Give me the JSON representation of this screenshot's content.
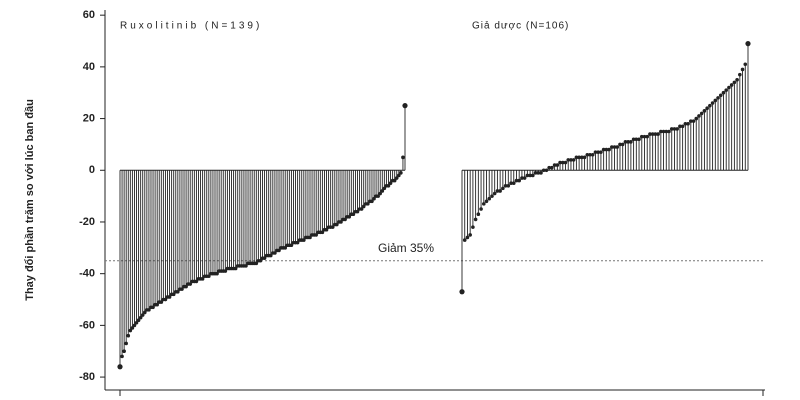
{
  "chart_data": {
    "type": "waterfall",
    "y_label": "Thay đổi phần trăm so với lúc ban đầu",
    "ylim": [
      -85,
      62
    ],
    "yticks": [
      60,
      40,
      20,
      0,
      -20,
      -40,
      -60,
      -80
    ],
    "reference_line": {
      "value": -35,
      "label": "Giảm 35%"
    },
    "series": [
      {
        "name": "Ruxolitinib (N=139)",
        "color": "#222222",
        "values": [
          -76,
          -72,
          -70,
          -67,
          -64,
          -62,
          -61,
          -60,
          -59,
          -58,
          -57,
          -56,
          -55,
          -54,
          -54,
          -53,
          -53,
          -52,
          -52,
          -51,
          -51,
          -50,
          -50,
          -49,
          -49,
          -48,
          -48,
          -47,
          -47,
          -46,
          -46,
          -45,
          -45,
          -44,
          -44,
          -43,
          -43,
          -43,
          -42,
          -42,
          -42,
          -41,
          -41,
          -41,
          -40,
          -40,
          -40,
          -40,
          -39,
          -39,
          -39,
          -39,
          -38,
          -38,
          -38,
          -38,
          -38,
          -37,
          -37,
          -37,
          -37,
          -37,
          -36,
          -36,
          -36,
          -36,
          -36,
          -35,
          -35,
          -34,
          -34,
          -33,
          -33,
          -33,
          -32,
          -32,
          -31,
          -31,
          -30,
          -30,
          -30,
          -29,
          -29,
          -29,
          -28,
          -28,
          -28,
          -27,
          -27,
          -27,
          -26,
          -26,
          -26,
          -25,
          -25,
          -25,
          -24,
          -24,
          -24,
          -23,
          -23,
          -22,
          -22,
          -22,
          -21,
          -21,
          -20,
          -20,
          -19,
          -19,
          -18,
          -18,
          -17,
          -17,
          -16,
          -16,
          -15,
          -15,
          -14,
          -13,
          -13,
          -12,
          -12,
          -11,
          -10,
          -10,
          -9,
          -8,
          -7,
          -6,
          -6,
          -5,
          -4,
          -4,
          -3,
          -2,
          -1,
          5,
          25
        ]
      },
      {
        "name": "Giả dược (N=106)",
        "color": "#222222",
        "values": [
          -47,
          -27,
          -26,
          -25,
          -22,
          -19,
          -17,
          -15,
          -13,
          -12,
          -11,
          -10,
          -9,
          -8,
          -8,
          -7,
          -6,
          -6,
          -5,
          -5,
          -4,
          -4,
          -3,
          -3,
          -2,
          -2,
          -2,
          -1,
          -1,
          -1,
          0,
          0,
          1,
          1,
          2,
          2,
          3,
          3,
          3,
          4,
          4,
          4,
          5,
          5,
          5,
          5,
          6,
          6,
          6,
          7,
          7,
          7,
          8,
          8,
          8,
          9,
          9,
          9,
          10,
          10,
          11,
          11,
          11,
          12,
          12,
          12,
          13,
          13,
          13,
          14,
          14,
          14,
          14,
          15,
          15,
          15,
          15,
          16,
          16,
          16,
          17,
          17,
          18,
          18,
          19,
          19,
          20,
          21,
          22,
          23,
          24,
          25,
          26,
          27,
          28,
          29,
          30,
          31,
          32,
          33,
          34,
          35,
          37,
          39,
          41,
          49
        ]
      }
    ]
  }
}
